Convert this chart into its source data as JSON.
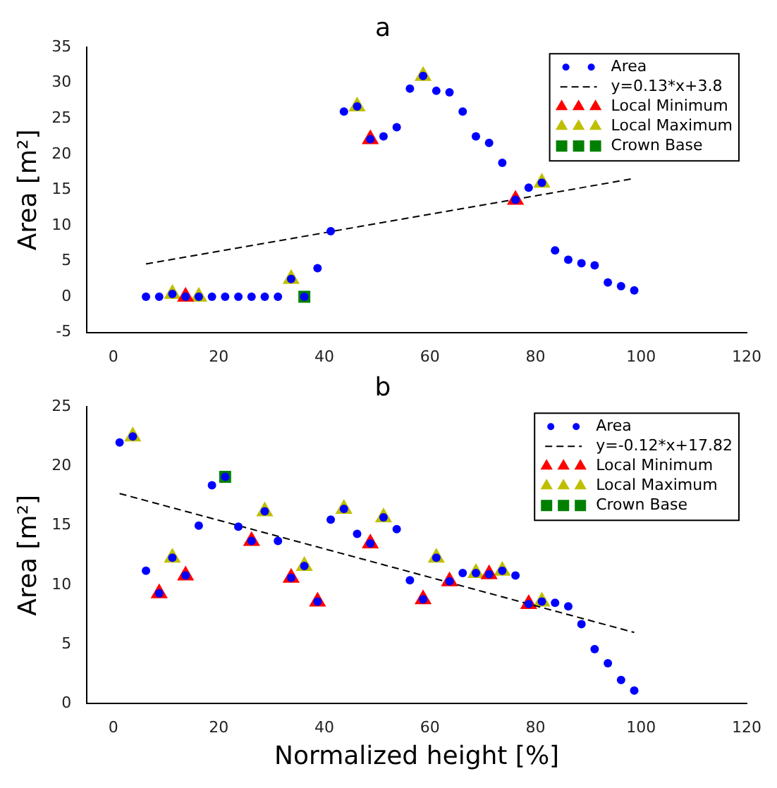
{
  "chart_data": [
    {
      "type": "scatter",
      "title": "a",
      "ylabel": "Area [m²]",
      "xlim": [
        -5,
        120
      ],
      "xticks": [
        0,
        20,
        40,
        60,
        80,
        100,
        120
      ],
      "ylim": [
        -5,
        35
      ],
      "yticks": [
        -5,
        0,
        5,
        10,
        15,
        20,
        25,
        30,
        35
      ],
      "grid": false,
      "legend": "top right",
      "series": [
        {
          "name": "Area",
          "marker": "circle",
          "color": "#0000ff",
          "x": [
            6.2,
            8.7,
            11.2,
            13.7,
            16.2,
            18.7,
            21.2,
            23.7,
            26.2,
            28.7,
            31.2,
            33.7,
            36.2,
            38.7,
            41.2,
            43.7,
            46.2,
            48.7,
            51.2,
            53.7,
            56.2,
            58.7,
            61.2,
            63.7,
            66.2,
            68.7,
            71.2,
            73.7,
            76.2,
            78.7,
            81.2,
            83.7,
            86.2,
            88.7,
            91.2,
            93.7,
            96.2,
            98.7
          ],
          "values": [
            0,
            0,
            0.4,
            0,
            0,
            0,
            0,
            0,
            0,
            0,
            0,
            2.5,
            0,
            4,
            9.2,
            26,
            26.7,
            22.1,
            22.5,
            23.8,
            29.2,
            31,
            28.9,
            28.7,
            26,
            22.5,
            21.6,
            18.8,
            13.6,
            15.3,
            16,
            6.5,
            5.2,
            4.7,
            4.4,
            2,
            1.5,
            0.9
          ]
        },
        {
          "name": "y=0.13*x+3.8",
          "type": "line",
          "marker": "none",
          "line_style": "dashed",
          "color": "#000000",
          "x": [
            6.2,
            98.7
          ],
          "values": [
            4.6,
            16.6
          ]
        },
        {
          "name": "Local Minimum",
          "marker": "triangle",
          "color": "#ff0000",
          "x": [
            13.7,
            48.7,
            76.2
          ],
          "values": [
            0,
            22.1,
            13.6
          ]
        },
        {
          "name": "Local Maximum",
          "marker": "triangle",
          "color": "#bfbf00",
          "x": [
            11.2,
            16.2,
            33.7,
            46.2,
            58.7,
            81.2
          ],
          "values": [
            0.4,
            0,
            2.5,
            26.7,
            31,
            16
          ]
        },
        {
          "name": "Crown Base",
          "marker": "square",
          "color": "#008000",
          "x": [
            36.2
          ],
          "values": [
            0
          ]
        }
      ]
    },
    {
      "type": "scatter",
      "title": "b",
      "xlabel": "Normalized height [%]",
      "ylabel": "Area [m²]",
      "xlim": [
        -5,
        120
      ],
      "xticks": [
        0,
        20,
        40,
        60,
        80,
        100,
        120
      ],
      "ylim": [
        0,
        25
      ],
      "yticks": [
        0,
        5,
        10,
        15,
        20,
        25
      ],
      "grid": false,
      "legend": "top right",
      "series": [
        {
          "name": "Area",
          "marker": "circle",
          "color": "#0000ff",
          "x": [
            1.2,
            3.7,
            6.2,
            8.7,
            11.2,
            13.7,
            16.2,
            18.7,
            21.2,
            23.7,
            26.2,
            28.7,
            31.2,
            33.7,
            36.2,
            38.7,
            41.2,
            43.7,
            46.2,
            48.7,
            51.2,
            53.7,
            56.2,
            58.7,
            61.2,
            63.7,
            66.2,
            68.7,
            71.2,
            73.7,
            76.2,
            78.7,
            81.2,
            83.7,
            86.2,
            88.7,
            91.2,
            93.7,
            96.2,
            98.7
          ],
          "values": [
            22,
            22.5,
            11.2,
            9.3,
            12.3,
            10.8,
            15,
            18.4,
            19.1,
            14.9,
            13.7,
            16.2,
            13.7,
            10.6,
            11.6,
            8.6,
            15.5,
            16.4,
            14.3,
            13.5,
            15.7,
            14.7,
            10.4,
            8.8,
            12.3,
            10.3,
            11,
            11,
            10.9,
            11.2,
            10.8,
            8.4,
            8.6,
            8.5,
            8.2,
            6.7,
            4.6,
            3.4,
            2,
            1.1
          ]
        },
        {
          "name": "y=-0.12*x+17.82",
          "type": "line",
          "marker": "none",
          "line_style": "dashed",
          "color": "#000000",
          "x": [
            1.2,
            98.7
          ],
          "values": [
            17.7,
            6
          ]
        },
        {
          "name": "Local Minimum",
          "marker": "triangle",
          "color": "#ff0000",
          "x": [
            8.7,
            13.7,
            26.2,
            33.7,
            38.7,
            48.7,
            58.7,
            63.7,
            71.2,
            78.7
          ],
          "values": [
            9.3,
            10.8,
            13.7,
            10.6,
            8.6,
            13.5,
            8.8,
            10.3,
            10.9,
            8.4
          ]
        },
        {
          "name": "Local Maximum",
          "marker": "triangle",
          "color": "#bfbf00",
          "x": [
            3.7,
            11.2,
            28.7,
            36.2,
            43.7,
            51.2,
            61.2,
            68.7,
            73.7,
            81.2
          ],
          "values": [
            22.5,
            12.3,
            16.2,
            11.6,
            16.4,
            15.7,
            12.3,
            11,
            11.2,
            8.6
          ]
        },
        {
          "name": "Crown Base",
          "marker": "square",
          "color": "#008000",
          "x": [
            21.2
          ],
          "values": [
            19.1
          ]
        }
      ]
    }
  ]
}
